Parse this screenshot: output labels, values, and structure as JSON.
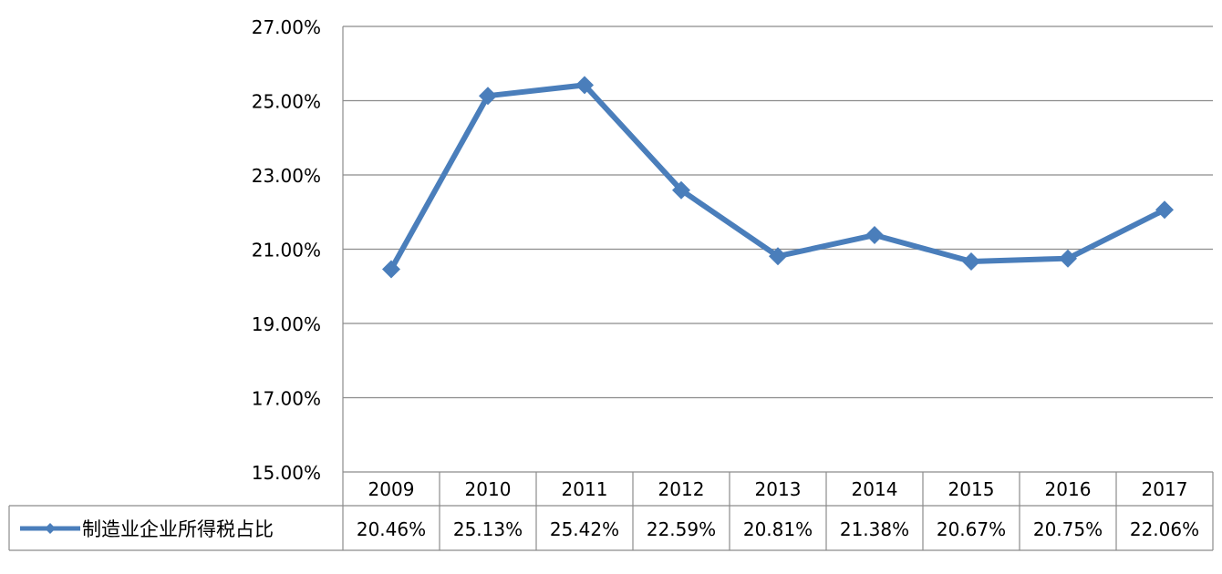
{
  "chart_data": {
    "type": "line",
    "title": "",
    "xlabel": "",
    "ylabel": "",
    "categories": [
      "2009",
      "2010",
      "2011",
      "2012",
      "2013",
      "2014",
      "2015",
      "2016",
      "2017"
    ],
    "series": [
      {
        "name": "制造业企业所得税占比",
        "values": [
          20.46,
          25.13,
          25.42,
          22.59,
          20.81,
          21.38,
          20.67,
          20.75,
          22.06
        ],
        "value_labels": [
          "20.46%",
          "25.13%",
          "25.42%",
          "22.59%",
          "20.81%",
          "21.38%",
          "20.67%",
          "20.75%",
          "22.06%"
        ],
        "color": "#4a7ebb",
        "marker": "diamond"
      }
    ],
    "ylim": [
      15,
      27
    ],
    "yticks": [
      15,
      17,
      19,
      21,
      23,
      25,
      27
    ],
    "ytick_labels": [
      "15.00%",
      "17.00%",
      "19.00%",
      "21.00%",
      "23.00%",
      "25.00%",
      "27.00%"
    ],
    "grid": true,
    "legend": "data-table",
    "data_table": true
  }
}
